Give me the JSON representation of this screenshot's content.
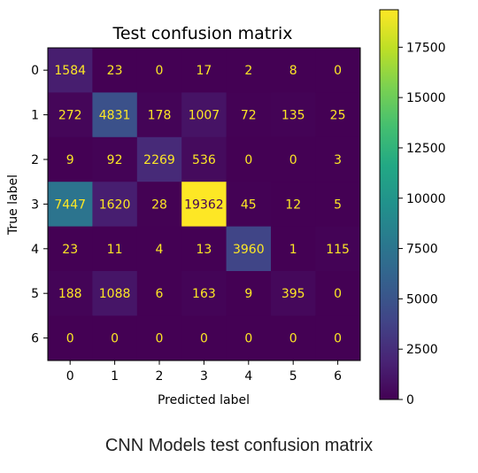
{
  "chart_data": {
    "type": "heatmap",
    "title": "Test confusion matrix",
    "xlabel": "Predicted label",
    "ylabel": "True label",
    "x_ticks": [
      "0",
      "1",
      "2",
      "3",
      "4",
      "5",
      "6"
    ],
    "y_ticks": [
      "0",
      "1",
      "2",
      "3",
      "4",
      "5",
      "6"
    ],
    "matrix": [
      [
        1584,
        23,
        0,
        17,
        2,
        8,
        0
      ],
      [
        272,
        4831,
        178,
        1007,
        72,
        135,
        25
      ],
      [
        9,
        92,
        2269,
        536,
        0,
        0,
        3
      ],
      [
        7447,
        1620,
        28,
        19362,
        45,
        12,
        5
      ],
      [
        23,
        11,
        4,
        13,
        3960,
        1,
        115
      ],
      [
        188,
        1088,
        6,
        163,
        9,
        395,
        0
      ],
      [
        0,
        0,
        0,
        0,
        0,
        0,
        0
      ]
    ],
    "colormap": "viridis",
    "colorbar": {
      "range": [
        0,
        19362
      ],
      "ticks": [
        0,
        2500,
        5000,
        7500,
        10000,
        12500,
        15000,
        17500
      ]
    },
    "text_color_low": "#fde725",
    "text_color_high": "#440154"
  },
  "caption": "CNN Models test confusion matrix"
}
